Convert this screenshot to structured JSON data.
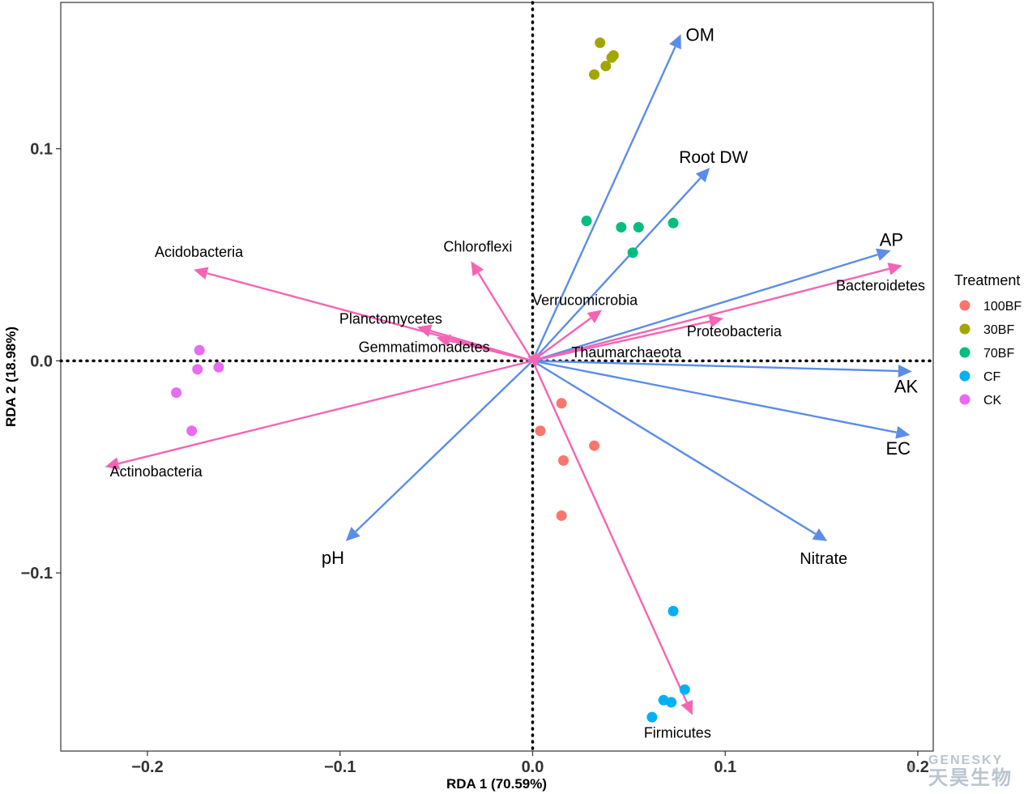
{
  "chart_data": {
    "type": "scatter",
    "subtype": "rda_biplot",
    "xlabel": "RDA 1 (70.59%)",
    "ylabel": "RDA 2 (18.98%)",
    "xlim": [
      -0.245,
      0.208
    ],
    "ylim": [
      -0.184,
      0.169
    ],
    "x_ticks": [
      {
        "value": -0.2,
        "label": "−0.2"
      },
      {
        "value": -0.1,
        "label": "−0.1"
      },
      {
        "value": 0.0,
        "label": "0.0"
      },
      {
        "value": 0.1,
        "label": "0.1"
      },
      {
        "value": 0.2,
        "label": "0.2"
      }
    ],
    "y_ticks": [
      {
        "value": 0.1,
        "label": "0.1"
      },
      {
        "value": 0.0,
        "label": "0.0"
      },
      {
        "value": -0.1,
        "label": "−0.1"
      }
    ],
    "grid": false,
    "zero_lines": "dotted",
    "legend": {
      "title": "Treatment",
      "placement": "right"
    },
    "series": [
      {
        "name": "100BF",
        "color": "#F8766D",
        "points": [
          [
            0.015,
            -0.02
          ],
          [
            0.004,
            -0.033
          ],
          [
            0.032,
            -0.04
          ],
          [
            0.016,
            -0.047
          ],
          [
            0.015,
            -0.073
          ]
        ]
      },
      {
        "name": "30BF",
        "color": "#A3A500",
        "points": [
          [
            0.035,
            0.15
          ],
          [
            0.042,
            0.144
          ],
          [
            0.041,
            0.143
          ],
          [
            0.038,
            0.139
          ],
          [
            0.032,
            0.135
          ]
        ]
      },
      {
        "name": "70BF",
        "color": "#00BF7D",
        "points": [
          [
            0.028,
            0.066
          ],
          [
            0.046,
            0.063
          ],
          [
            0.055,
            0.063
          ],
          [
            0.073,
            0.065
          ],
          [
            0.052,
            0.051
          ]
        ]
      },
      {
        "name": "CF",
        "color": "#00B0F6",
        "points": [
          [
            0.073,
            -0.118
          ],
          [
            0.079,
            -0.155
          ],
          [
            0.068,
            -0.16
          ],
          [
            0.072,
            -0.161
          ],
          [
            0.062,
            -0.168
          ]
        ]
      },
      {
        "name": "CK",
        "color": "#E76BF3",
        "points": [
          [
            -0.173,
            0.005
          ],
          [
            -0.174,
            -0.004
          ],
          [
            -0.163,
            -0.003
          ],
          [
            -0.185,
            -0.015
          ],
          [
            -0.177,
            -0.033
          ]
        ]
      }
    ],
    "env_vectors": {
      "color": "#5B8DE8",
      "items": [
        {
          "name": "OM",
          "x": 0.077,
          "y": 0.154
        },
        {
          "name": "Root DW",
          "x": 0.092,
          "y": 0.091
        },
        {
          "name": "AP",
          "x": 0.186,
          "y": 0.052
        },
        {
          "name": "AK",
          "x": 0.197,
          "y": -0.005
        },
        {
          "name": "EC",
          "x": 0.196,
          "y": -0.035
        },
        {
          "name": "Nitrate",
          "x": 0.153,
          "y": -0.085
        },
        {
          "name": "pH",
          "x": -0.097,
          "y": -0.085
        }
      ]
    },
    "taxa_vectors": {
      "color": "#F564B4",
      "items": [
        {
          "name": "Acidobacteria",
          "x": -0.176,
          "y": 0.043
        },
        {
          "name": "Chloroflexi",
          "x": -0.032,
          "y": 0.047
        },
        {
          "name": "Planctomycetes",
          "x": -0.06,
          "y": 0.016
        },
        {
          "name": "Gemmatimonadetes",
          "x": -0.05,
          "y": 0.011
        },
        {
          "name": "Verrucomicrobia",
          "x": 0.036,
          "y": 0.024
        },
        {
          "name": "Bacteroidetes",
          "x": 0.192,
          "y": 0.045
        },
        {
          "name": "Proteobacteria",
          "x": 0.099,
          "y": 0.02
        },
        {
          "name": "Thaumarchaeota",
          "x": 0.005,
          "y": 0.004
        },
        {
          "name": "Actinobacteria",
          "x": -0.222,
          "y": -0.05
        },
        {
          "name": "Firmicutes",
          "x": 0.083,
          "y": -0.167
        }
      ]
    }
  },
  "watermark": {
    "top": "GENESKY",
    "bottom": "天昊生物"
  }
}
